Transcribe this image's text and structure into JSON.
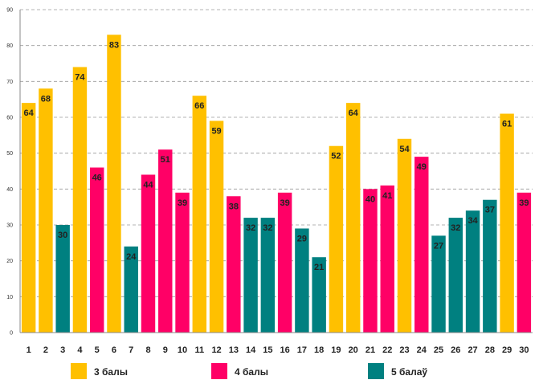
{
  "chart_data": {
    "type": "bar",
    "title": "",
    "xlabel": "",
    "ylabel": "",
    "ylim": [
      0,
      90
    ],
    "ytick_step": 10,
    "grid": true,
    "legend_position": "bottom",
    "categories": [
      "1",
      "2",
      "3",
      "4",
      "5",
      "6",
      "7",
      "8",
      "9",
      "10",
      "11",
      "12",
      "13",
      "14",
      "15",
      "16",
      "17",
      "18",
      "19",
      "20",
      "21",
      "22",
      "23",
      "24",
      "25",
      "26",
      "27",
      "28",
      "29",
      "30"
    ],
    "values": [
      64,
      68,
      30,
      74,
      46,
      83,
      24,
      44,
      51,
      39,
      66,
      59,
      38,
      32,
      32,
      39,
      29,
      21,
      52,
      64,
      40,
      41,
      54,
      49,
      27,
      32,
      34,
      37,
      61,
      39
    ],
    "groups": [
      0,
      0,
      2,
      0,
      1,
      0,
      2,
      1,
      1,
      1,
      0,
      0,
      1,
      2,
      2,
      1,
      2,
      2,
      0,
      0,
      1,
      1,
      0,
      1,
      2,
      2,
      2,
      2,
      0,
      1
    ],
    "series": [
      {
        "name": "3 балы",
        "color": "#FFC000"
      },
      {
        "name": "4 балы",
        "color": "#FF0066"
      },
      {
        "name": "5 балаў",
        "color": "#008080"
      }
    ]
  }
}
